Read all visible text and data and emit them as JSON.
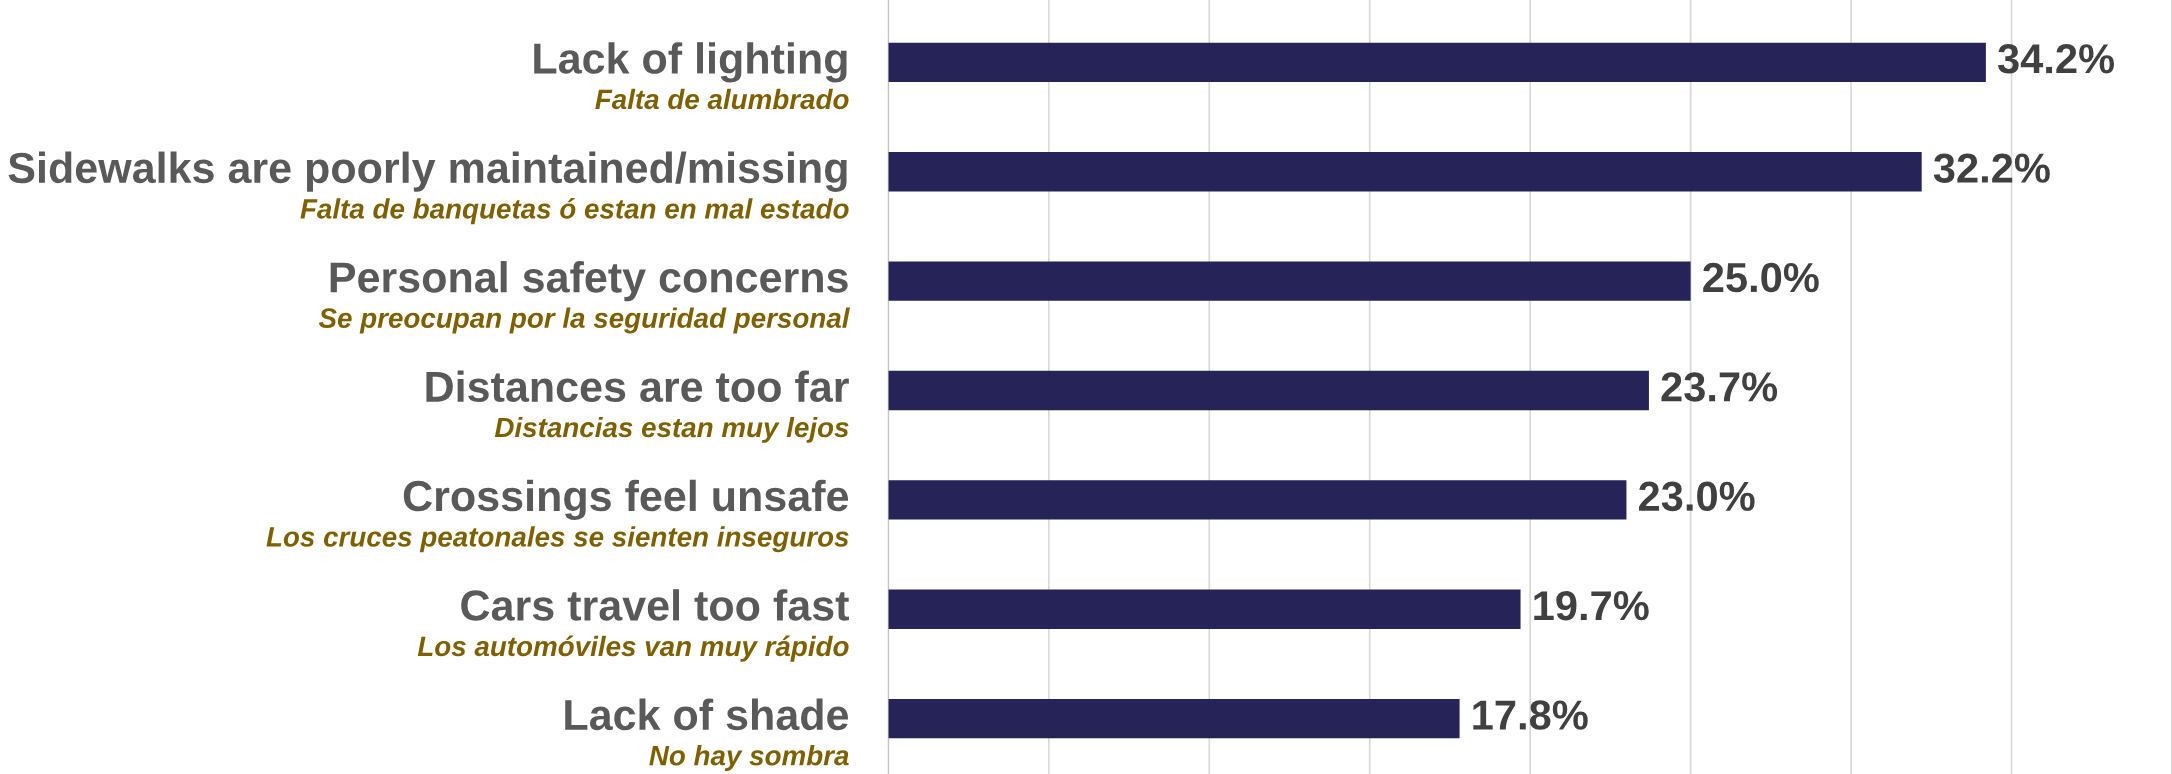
{
  "chart_data": {
    "type": "bar",
    "orientation": "horizontal",
    "categories": [
      "Lack of lighting\nFalta de alumbrado",
      "Sidewalks are poorly maintained/missing\nFalta de banquetas ó estan en mal estado",
      "Personal safety concerns\nSe preocupan por la seguridad personal",
      "Distances are too far\nDistancias estan muy lejos",
      "Crossings feel unsafe\nLos cruces peatonales se sienten inseguros",
      "Cars travel too fast\nLos automóviles van muy rápido",
      "Lack of shade\nNo hay sombra"
    ],
    "values": [
      34.2,
      32.2,
      25.0,
      23.7,
      23.0,
      19.7,
      17.8
    ],
    "value_labels": [
      "34.2%",
      "32.2%",
      "25.0%",
      "23.7%",
      "23.0%",
      "19.7%",
      "17.8%"
    ],
    "color": "#262358",
    "xlim": [
      0,
      40
    ],
    "xticks": [
      {
        "value": 0,
        "label": null
      },
      {
        "value": 5,
        "label": null
      },
      {
        "value": 10,
        "label": null
      },
      {
        "value": 15,
        "label": null
      },
      {
        "value": 20,
        "label": null
      },
      {
        "value": 25,
        "label": null
      },
      {
        "value": 30,
        "label": null
      },
      {
        "value": 35,
        "label": null
      },
      {
        "value": 40,
        "label": null
      }
    ],
    "grid": "x"
  }
}
